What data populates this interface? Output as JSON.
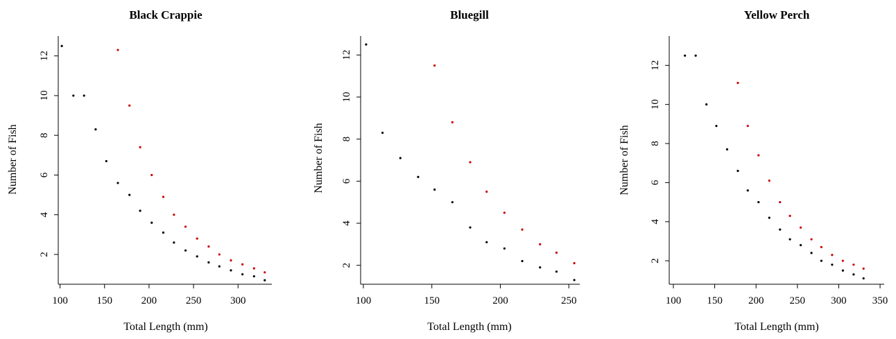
{
  "colors": {
    "series_black": "#000000",
    "series_red": "#cc0000",
    "axis": "#000000"
  },
  "chart_data": [
    {
      "type": "scatter",
      "title": "Black Crappie",
      "xlabel": "Total Length (mm)",
      "ylabel": "Number of Fish",
      "xlim": [
        98,
        338
      ],
      "ylim": [
        0.5,
        13
      ],
      "xticks": [
        100,
        150,
        200,
        250,
        300
      ],
      "yticks": [
        2,
        4,
        6,
        8,
        10,
        12
      ],
      "grid": false,
      "series": [
        {
          "color": "#000000",
          "x": [
            102,
            115,
            127,
            140,
            152,
            165,
            178,
            190,
            203,
            216,
            228,
            241,
            254,
            267,
            279,
            292,
            305,
            318,
            330
          ],
          "y": [
            12.5,
            10.0,
            10.0,
            8.3,
            6.7,
            5.6,
            5.0,
            4.2,
            3.6,
            3.1,
            2.6,
            2.2,
            1.9,
            1.6,
            1.4,
            1.2,
            1.0,
            0.9,
            0.7
          ]
        },
        {
          "color": "#cc0000",
          "x": [
            165,
            178,
            190,
            203,
            216,
            228,
            241,
            254,
            267,
            279,
            292,
            305,
            318,
            330
          ],
          "y": [
            12.3,
            9.5,
            7.4,
            6.0,
            4.9,
            4.0,
            3.4,
            2.8,
            2.4,
            2.0,
            1.7,
            1.5,
            1.3,
            1.1
          ]
        }
      ]
    },
    {
      "type": "scatter",
      "title": "Bluegill",
      "xlabel": "Total Length (mm)",
      "ylabel": "Number of Fish",
      "xlim": [
        98,
        258
      ],
      "ylim": [
        1.1,
        12.9
      ],
      "xticks": [
        100,
        150,
        200,
        250
      ],
      "yticks": [
        2,
        4,
        6,
        8,
        10,
        12
      ],
      "grid": false,
      "series": [
        {
          "color": "#000000",
          "x": [
            102,
            114,
            127,
            140,
            152,
            165,
            178,
            190,
            203,
            216,
            229,
            241,
            254
          ],
          "y": [
            12.5,
            8.3,
            7.1,
            6.2,
            5.6,
            5.0,
            3.8,
            3.1,
            2.8,
            2.2,
            1.9,
            1.7,
            1.3
          ]
        },
        {
          "color": "#cc0000",
          "x": [
            152,
            165,
            178,
            190,
            203,
            216,
            229,
            241,
            254
          ],
          "y": [
            11.5,
            8.8,
            6.9,
            5.5,
            4.5,
            3.7,
            3.0,
            2.6,
            2.1
          ]
        }
      ]
    },
    {
      "type": "scatter",
      "title": "Yellow Perch",
      "xlabel": "Total Length (mm)",
      "ylabel": "Number of Fish",
      "xlim": [
        95,
        355
      ],
      "ylim": [
        0.8,
        13.5
      ],
      "xticks": [
        100,
        150,
        200,
        250,
        300,
        350
      ],
      "yticks": [
        2,
        4,
        6,
        8,
        10,
        12
      ],
      "grid": false,
      "series": [
        {
          "color": "#000000",
          "x": [
            114,
            127,
            140,
            152,
            165,
            178,
            190,
            203,
            216,
            229,
            241,
            254,
            267,
            279,
            292,
            305,
            318,
            330
          ],
          "y": [
            12.5,
            12.5,
            10.0,
            8.9,
            7.7,
            6.6,
            5.6,
            5.0,
            4.2,
            3.6,
            3.1,
            2.8,
            2.4,
            2.0,
            1.8,
            1.5,
            1.3,
            1.1
          ]
        },
        {
          "color": "#cc0000",
          "x": [
            178,
            190,
            203,
            216,
            229,
            241,
            254,
            267,
            279,
            292,
            305,
            318,
            330
          ],
          "y": [
            11.1,
            8.9,
            7.4,
            6.1,
            5.0,
            4.3,
            3.7,
            3.1,
            2.7,
            2.3,
            2.0,
            1.8,
            1.6
          ]
        }
      ]
    }
  ]
}
